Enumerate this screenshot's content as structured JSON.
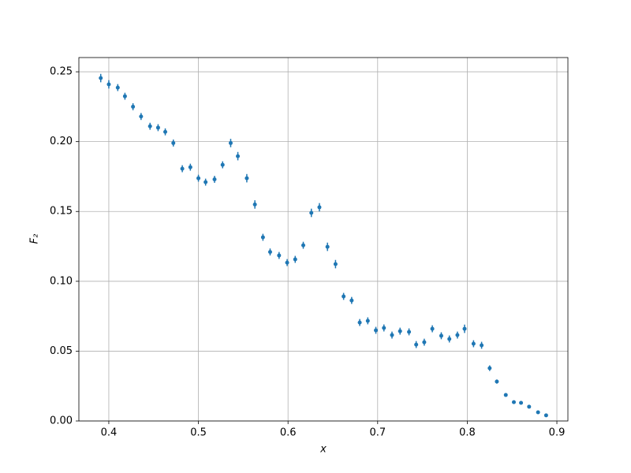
{
  "chart_data": {
    "type": "errorbar",
    "xlabel": "x",
    "ylabel": "F₂",
    "xlim": [
      0.3666,
      0.9123
    ],
    "ylim": [
      0,
      0.2602
    ],
    "xticks": [
      0.4,
      0.5,
      0.6,
      0.7,
      0.8,
      0.9
    ],
    "yticks": [
      {
        "value": 0,
        "label": "0.00"
      },
      {
        "value": 0.05,
        "label": "0.05"
      },
      {
        "value": 0.1,
        "label": "0.10"
      },
      {
        "value": 0.15,
        "label": "0.15"
      },
      {
        "value": 0.2,
        "label": "0.20"
      },
      {
        "value": 0.25,
        "label": "0.25"
      }
    ],
    "grid": true,
    "series": [
      {
        "color": "#1f77b4",
        "x": [
          0.391,
          0.4,
          0.41,
          0.418,
          0.427,
          0.436,
          0.446,
          0.455,
          0.463,
          0.472,
          0.482,
          0.491,
          0.5,
          0.508,
          0.518,
          0.527,
          0.536,
          0.544,
          0.554,
          0.563,
          0.572,
          0.58,
          0.59,
          0.599,
          0.608,
          0.617,
          0.626,
          0.635,
          0.644,
          0.653,
          0.662,
          0.671,
          0.68,
          0.689,
          0.698,
          0.707,
          0.716,
          0.725,
          0.735,
          0.743,
          0.752,
          0.761,
          0.771,
          0.78,
          0.789,
          0.797,
          0.807,
          0.816,
          0.825,
          0.833,
          0.843,
          0.852,
          0.86,
          0.869,
          0.879,
          0.888
        ],
        "values": [
          0.2455,
          0.241,
          0.2387,
          0.2325,
          0.225,
          0.218,
          0.211,
          0.21,
          0.207,
          0.199,
          0.1806,
          0.1817,
          0.1738,
          0.171,
          0.173,
          0.1834,
          0.199,
          0.1896,
          0.1738,
          0.155,
          0.1315,
          0.121,
          0.1185,
          0.1134,
          0.1157,
          0.1258,
          0.149,
          0.153,
          0.1247,
          0.1123,
          0.0892,
          0.0863,
          0.0705,
          0.0717,
          0.0649,
          0.0666,
          0.0615,
          0.0643,
          0.0638,
          0.0547,
          0.0564,
          0.066,
          0.061,
          0.0587,
          0.0615,
          0.066,
          0.0553,
          0.0542,
          0.0378,
          0.0282,
          0.0186,
          0.0135,
          0.013,
          0.0102,
          0.0062,
          0.004
        ],
        "errors": [
          0.003,
          0.003,
          0.0025,
          0.0025,
          0.0025,
          0.0025,
          0.0025,
          0.0025,
          0.0025,
          0.0025,
          0.0025,
          0.0025,
          0.0025,
          0.0025,
          0.0025,
          0.0025,
          0.003,
          0.003,
          0.003,
          0.003,
          0.0025,
          0.0025,
          0.0025,
          0.0025,
          0.0025,
          0.0025,
          0.003,
          0.003,
          0.003,
          0.003,
          0.0025,
          0.0025,
          0.0025,
          0.0025,
          0.0025,
          0.0025,
          0.0025,
          0.0025,
          0.0025,
          0.0025,
          0.0025,
          0.0025,
          0.0025,
          0.0025,
          0.0025,
          0.003,
          0.0025,
          0.0025,
          0.002,
          0.0015,
          0.001,
          0.001,
          0.001,
          0.001,
          0.001,
          0.001
        ]
      }
    ]
  }
}
